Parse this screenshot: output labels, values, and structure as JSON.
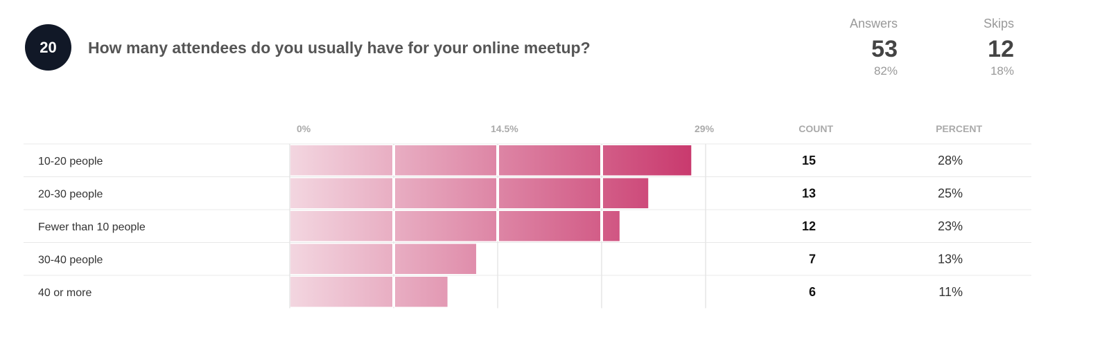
{
  "question": {
    "number": "20",
    "text": "How many attendees do you usually have for your online meetup?"
  },
  "stats": {
    "answers": {
      "label": "Answers",
      "value": "53",
      "percent": "82%"
    },
    "skips": {
      "label": "Skips",
      "value": "12",
      "percent": "18%"
    }
  },
  "table": {
    "count_header": "COUNT",
    "percent_header": "PERCENT"
  },
  "colors": {
    "bar_light": "#f3d6e0",
    "bar_dark": "#c93a6e"
  },
  "chart_data": {
    "type": "bar",
    "orientation": "horizontal",
    "xlim": [
      0,
      29
    ],
    "x_ticks": [
      "0%",
      "14.5%",
      "29%"
    ],
    "categories": [
      "10-20 people",
      "20-30 people",
      "Fewer than 10 people",
      "30-40 people",
      "40 or more"
    ],
    "values": [
      28,
      25,
      23,
      13,
      11
    ],
    "counts": [
      "15",
      "13",
      "12",
      "7",
      "6"
    ],
    "percent_labels": [
      "28%",
      "25%",
      "23%",
      "13%",
      "11%"
    ],
    "grid": true
  }
}
